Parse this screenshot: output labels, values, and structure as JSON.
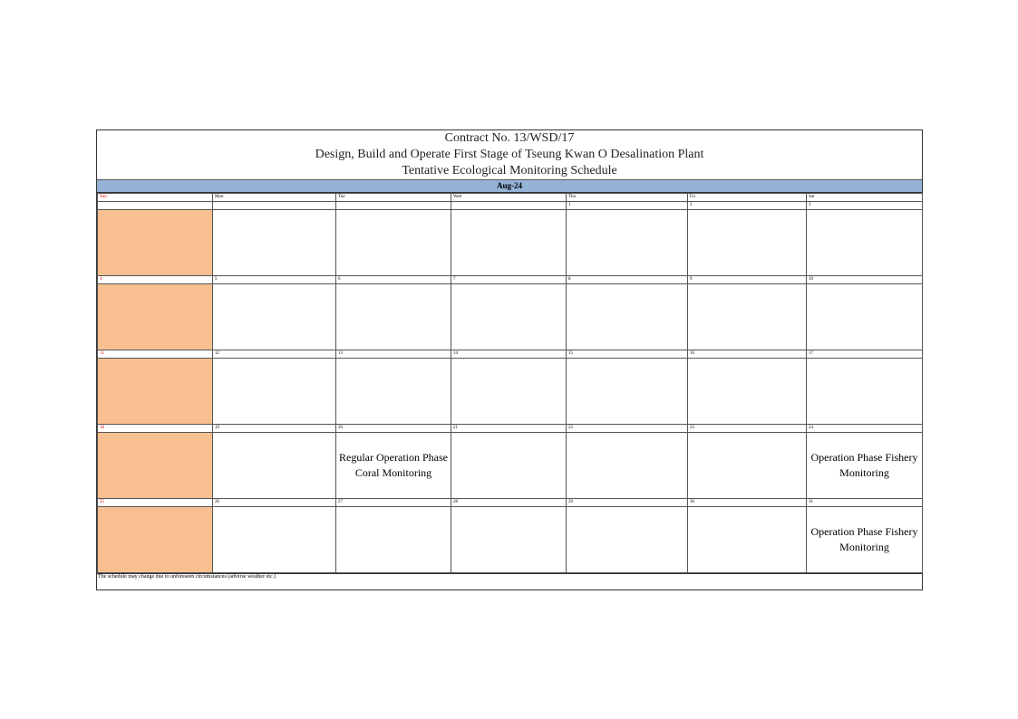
{
  "title": {
    "line1": "Contract No. 13/WSD/17",
    "line2": "Design, Build and Operate First Stage of Tseung Kwan O Desalination Plant",
    "line3": "Tentative Ecological Monitoring Schedule"
  },
  "month": "Aug-24",
  "days": [
    "Sun",
    "Mon",
    "Tue",
    "Wed",
    "Thu",
    "Fri",
    "Sat"
  ],
  "weeks": [
    {
      "dates": [
        "",
        "",
        "",
        "",
        "1",
        "2",
        "3"
      ],
      "events": [
        "",
        "",
        "",
        "",
        "",
        "",
        ""
      ]
    },
    {
      "dates": [
        "4",
        "5",
        "6",
        "7",
        "8",
        "9",
        "10"
      ],
      "events": [
        "",
        "",
        "",
        "",
        "",
        "",
        ""
      ]
    },
    {
      "dates": [
        "11",
        "12",
        "13",
        "14",
        "15",
        "16",
        "17"
      ],
      "events": [
        "",
        "",
        "",
        "",
        "",
        "",
        ""
      ]
    },
    {
      "dates": [
        "18",
        "19",
        "20",
        "21",
        "22",
        "23",
        "24"
      ],
      "events": [
        "",
        "",
        "Regular Operation Phase Coral Monitoring",
        "",
        "",
        "",
        "Operation Phase Fishery Monitoring"
      ]
    },
    {
      "dates": [
        "25",
        "26",
        "27",
        "28",
        "29",
        "30",
        "31"
      ],
      "events": [
        "",
        "",
        "",
        "",
        "",
        "",
        "Operation Phase Fishery Monitoring"
      ]
    }
  ],
  "footer": "The schedule may change due to unforeseen circumstances (adverse weather etc.)",
  "colors": {
    "month_bar": "#95b3d7",
    "sunday_fill": "#f8c090",
    "sunday_text": "#e00000"
  }
}
